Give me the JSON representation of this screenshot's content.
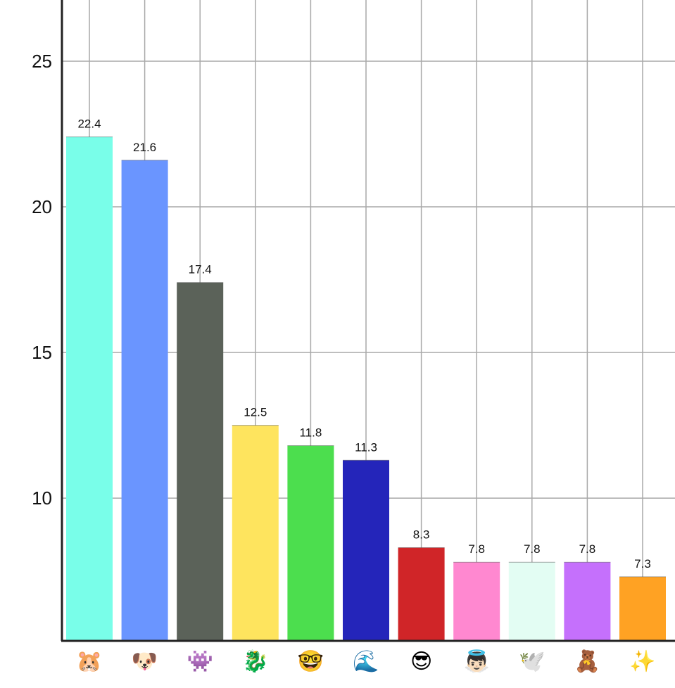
{
  "chart_data": {
    "type": "bar",
    "categories": [
      "🐹",
      "🐶",
      "👾",
      "🐉",
      "🤓",
      "🌊",
      "😎",
      "👼🏻",
      "🕊️",
      "🧸",
      "✨"
    ],
    "values": [
      22.4,
      21.6,
      17.4,
      12.5,
      11.8,
      11.3,
      8.3,
      7.8,
      7.8,
      7.8,
      7.3
    ],
    "value_labels": [
      "22.4",
      "21.6",
      "17.4",
      "12.5",
      "11.8",
      "11.3",
      "8.3",
      "7.8",
      "7.8",
      "7.8",
      "7.3"
    ],
    "colors": [
      "#79FEE9",
      "#6A95FF",
      "#5B6259",
      "#FEE45E",
      "#4CDE4E",
      "#2425BA",
      "#D02528",
      "#FF88D0",
      "#E3FDF3",
      "#C570FC",
      "#FFA223"
    ],
    "title": "",
    "xlabel": "",
    "ylabel": "",
    "ylim": [
      5.1,
      27.1
    ],
    "yticks": [
      10,
      15,
      20,
      25
    ],
    "ytick_labels": [
      "10",
      "15",
      "20",
      "25"
    ],
    "grid": true,
    "legend": "none"
  }
}
